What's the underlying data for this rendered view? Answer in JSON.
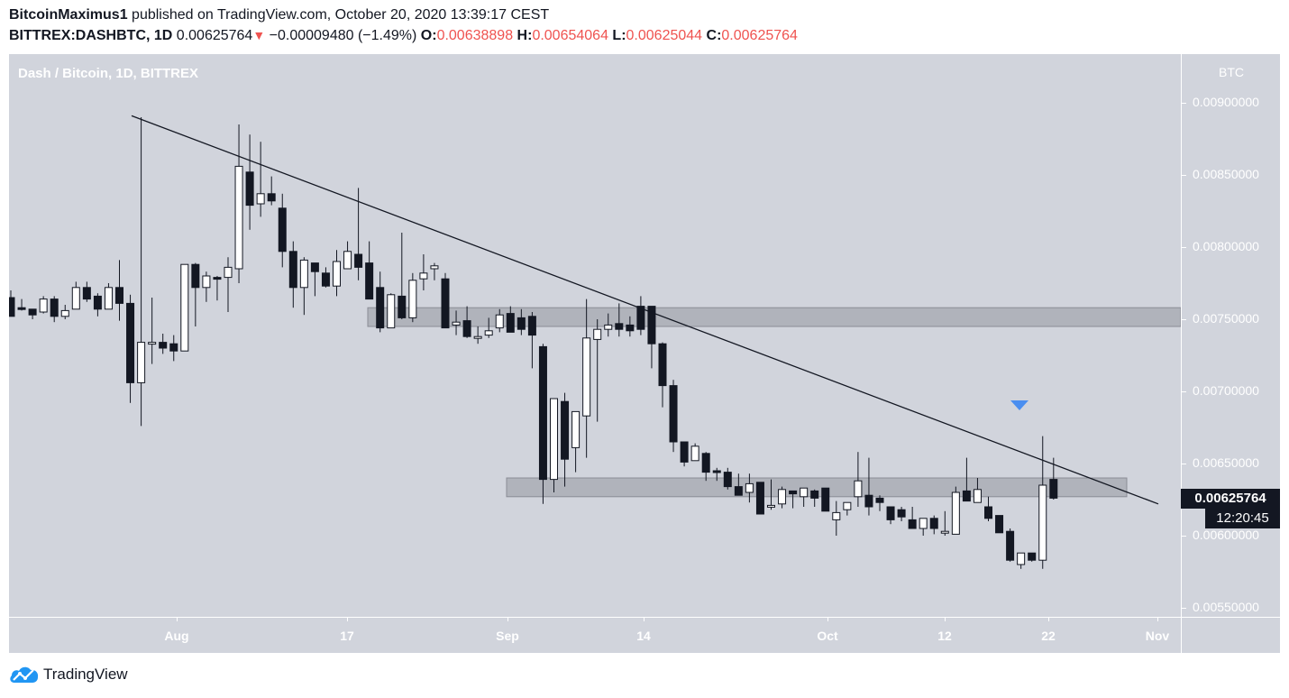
{
  "header": {
    "author": "BitcoinMaximus1",
    "published_text": " published on TradingView.com, October 20, 2020 13:39:17 CEST",
    "symbol": "BITTREX:DASHBTC, 1D",
    "last": "0.00625764",
    "change_arrow": "▼",
    "change": "−0.00009480 (−1.49%)",
    "o_label": "O:",
    "o": "0.00638898",
    "h_label": "H:",
    "h": "0.00654064",
    "l_label": "L:",
    "l": "0.00625044",
    "c_label": "C:",
    "c": "0.00625764"
  },
  "pane": {
    "title": "Dash / Bitcoin, 1D, BITTREX"
  },
  "price_axis": {
    "unit": "BTC",
    "ticks": [
      "0.00900000",
      "0.00850000",
      "0.00800000",
      "0.00750000",
      "0.00700000",
      "0.00650000",
      "0.00600000",
      "0.00550000"
    ],
    "current_price": "0.00625764",
    "countdown": "12:20:45"
  },
  "time_axis": {
    "ticks": [
      {
        "label": "Aug",
        "x": 186
      },
      {
        "label": "17",
        "x": 375
      },
      {
        "label": "Sep",
        "x": 553
      },
      {
        "label": "14",
        "x": 704
      },
      {
        "label": "Oct",
        "x": 908
      },
      {
        "label": "12",
        "x": 1038
      },
      {
        "label": "22",
        "x": 1153
      },
      {
        "label": "Nov",
        "x": 1274
      }
    ]
  },
  "footer": {
    "brand": "TradingView"
  },
  "colors": {
    "background": "#d1d4dc",
    "up_body": "#ffffff",
    "down_body": "#131722",
    "wick": "#131722",
    "zone_fill": "#9598a1",
    "signal_arrow": "#4a8ef0",
    "negative": "#ef5350"
  },
  "chart_data": {
    "type": "candlestick",
    "title": "Dash / Bitcoin, 1D, BITTREX",
    "symbol": "BITTREX:DASHBTC",
    "interval": "1D",
    "ylabel": "BTC",
    "ylim": [
      0.0053,
      0.0093
    ],
    "x_tick_labels": [
      "Aug",
      "17",
      "Sep",
      "14",
      "Oct",
      "12",
      "22",
      "Nov"
    ],
    "y_tick_labels": [
      "0.00900000",
      "0.00850000",
      "0.00800000",
      "0.00750000",
      "0.00700000",
      "0.00650000",
      "0.00600000",
      "0.00550000"
    ],
    "candles": [
      {
        "o": 0.00765,
        "h": 0.0077,
        "l": 0.00752,
        "c": 0.00752
      },
      {
        "o": 0.00758,
        "h": 0.00764,
        "l": 0.00756,
        "c": 0.00757
      },
      {
        "o": 0.00757,
        "h": 0.00757,
        "l": 0.0075,
        "c": 0.00753
      },
      {
        "o": 0.00755,
        "h": 0.00766,
        "l": 0.00754,
        "c": 0.00764
      },
      {
        "o": 0.00764,
        "h": 0.00766,
        "l": 0.00748,
        "c": 0.00752
      },
      {
        "o": 0.00752,
        "h": 0.0076,
        "l": 0.0075,
        "c": 0.00756
      },
      {
        "o": 0.00757,
        "h": 0.00776,
        "l": 0.00757,
        "c": 0.00772
      },
      {
        "o": 0.00772,
        "h": 0.00776,
        "l": 0.00762,
        "c": 0.00764
      },
      {
        "o": 0.00766,
        "h": 0.00768,
        "l": 0.00752,
        "c": 0.00757
      },
      {
        "o": 0.00757,
        "h": 0.00775,
        "l": 0.00757,
        "c": 0.00772
      },
      {
        "o": 0.00772,
        "h": 0.00791,
        "l": 0.00749,
        "c": 0.00761
      },
      {
        "o": 0.00761,
        "h": 0.00767,
        "l": 0.00692,
        "c": 0.00706
      },
      {
        "o": 0.00706,
        "h": 0.0089,
        "l": 0.00676,
        "c": 0.00734
      },
      {
        "o": 0.00734,
        "h": 0.00765,
        "l": 0.00719,
        "c": 0.00734
      },
      {
        "o": 0.00734,
        "h": 0.0074,
        "l": 0.00726,
        "c": 0.0073
      },
      {
        "o": 0.00733,
        "h": 0.00739,
        "l": 0.00721,
        "c": 0.00728
      },
      {
        "o": 0.00728,
        "h": 0.00788,
        "l": 0.00728,
        "c": 0.00788
      },
      {
        "o": 0.00788,
        "h": 0.00789,
        "l": 0.00745,
        "c": 0.00772
      },
      {
        "o": 0.00772,
        "h": 0.00783,
        "l": 0.00762,
        "c": 0.0078
      },
      {
        "o": 0.00779,
        "h": 0.0078,
        "l": 0.00763,
        "c": 0.00778
      },
      {
        "o": 0.00779,
        "h": 0.00793,
        "l": 0.00755,
        "c": 0.00786
      },
      {
        "o": 0.00785,
        "h": 0.00885,
        "l": 0.00775,
        "c": 0.00856
      },
      {
        "o": 0.00852,
        "h": 0.00878,
        "l": 0.00812,
        "c": 0.00829
      },
      {
        "o": 0.0083,
        "h": 0.00873,
        "l": 0.00821,
        "c": 0.00837
      },
      {
        "o": 0.00837,
        "h": 0.00849,
        "l": 0.00829,
        "c": 0.00832
      },
      {
        "o": 0.00827,
        "h": 0.00837,
        "l": 0.00786,
        "c": 0.00797
      },
      {
        "o": 0.00797,
        "h": 0.00804,
        "l": 0.00758,
        "c": 0.00772
      },
      {
        "o": 0.00772,
        "h": 0.00793,
        "l": 0.00753,
        "c": 0.00791
      },
      {
        "o": 0.00789,
        "h": 0.00789,
        "l": 0.00766,
        "c": 0.00783
      },
      {
        "o": 0.00782,
        "h": 0.00786,
        "l": 0.00772,
        "c": 0.00773
      },
      {
        "o": 0.00773,
        "h": 0.00798,
        "l": 0.00766,
        "c": 0.0079
      },
      {
        "o": 0.00785,
        "h": 0.00804,
        "l": 0.00787,
        "c": 0.00797
      },
      {
        "o": 0.00795,
        "h": 0.00841,
        "l": 0.00777,
        "c": 0.00786
      },
      {
        "o": 0.00789,
        "h": 0.00804,
        "l": 0.00773,
        "c": 0.00764
      },
      {
        "o": 0.00772,
        "h": 0.00783,
        "l": 0.00741,
        "c": 0.00744
      },
      {
        "o": 0.00744,
        "h": 0.00768,
        "l": 0.00744,
        "c": 0.00767
      },
      {
        "o": 0.00766,
        "h": 0.0081,
        "l": 0.0075,
        "c": 0.00751
      },
      {
        "o": 0.00751,
        "h": 0.00782,
        "l": 0.00748,
        "c": 0.00777
      },
      {
        "o": 0.00778,
        "h": 0.00795,
        "l": 0.0077,
        "c": 0.00782
      },
      {
        "o": 0.00785,
        "h": 0.00789,
        "l": 0.00777,
        "c": 0.00787
      },
      {
        "o": 0.00778,
        "h": 0.00782,
        "l": 0.00745,
        "c": 0.00744
      },
      {
        "o": 0.00746,
        "h": 0.00756,
        "l": 0.00739,
        "c": 0.00748
      },
      {
        "o": 0.00749,
        "h": 0.00759,
        "l": 0.00737,
        "c": 0.00738
      },
      {
        "o": 0.00738,
        "h": 0.00745,
        "l": 0.00733,
        "c": 0.00738
      },
      {
        "o": 0.00739,
        "h": 0.00751,
        "l": 0.00737,
        "c": 0.00742
      },
      {
        "o": 0.00744,
        "h": 0.00757,
        "l": 0.00741,
        "c": 0.00753
      },
      {
        "o": 0.00754,
        "h": 0.00759,
        "l": 0.00744,
        "c": 0.00741
      },
      {
        "o": 0.00751,
        "h": 0.00757,
        "l": 0.00739,
        "c": 0.00743
      },
      {
        "o": 0.00752,
        "h": 0.00755,
        "l": 0.00716,
        "c": 0.00739
      },
      {
        "o": 0.00731,
        "h": 0.00733,
        "l": 0.00622,
        "c": 0.00639
      },
      {
        "o": 0.00639,
        "h": 0.00695,
        "l": 0.0063,
        "c": 0.00695
      },
      {
        "o": 0.00693,
        "h": 0.00699,
        "l": 0.00634,
        "c": 0.00653
      },
      {
        "o": 0.00661,
        "h": 0.00686,
        "l": 0.00644,
        "c": 0.00686
      },
      {
        "o": 0.00683,
        "h": 0.00764,
        "l": 0.00654,
        "c": 0.00737
      },
      {
        "o": 0.00736,
        "h": 0.0075,
        "l": 0.00679,
        "c": 0.00743
      },
      {
        "o": 0.00743,
        "h": 0.00754,
        "l": 0.00738,
        "c": 0.00746
      },
      {
        "o": 0.00747,
        "h": 0.00761,
        "l": 0.00738,
        "c": 0.00743
      },
      {
        "o": 0.00746,
        "h": 0.00752,
        "l": 0.00738,
        "c": 0.00742
      },
      {
        "o": 0.00759,
        "h": 0.00766,
        "l": 0.00739,
        "c": 0.00743
      },
      {
        "o": 0.00759,
        "h": 0.00758,
        "l": 0.00716,
        "c": 0.00733
      },
      {
        "o": 0.00733,
        "h": 0.00734,
        "l": 0.00689,
        "c": 0.00704
      },
      {
        "o": 0.00704,
        "h": 0.00708,
        "l": 0.00658,
        "c": 0.00665
      },
      {
        "o": 0.00665,
        "h": 0.00658,
        "l": 0.00648,
        "c": 0.00651
      },
      {
        "o": 0.00652,
        "h": 0.00664,
        "l": 0.00655,
        "c": 0.00662
      },
      {
        "o": 0.00657,
        "h": 0.00658,
        "l": 0.00638,
        "c": 0.00644
      },
      {
        "o": 0.00645,
        "h": 0.00647,
        "l": 0.00638,
        "c": 0.00644
      },
      {
        "o": 0.00644,
        "h": 0.00647,
        "l": 0.00632,
        "c": 0.00634
      },
      {
        "o": 0.00634,
        "h": 0.00643,
        "l": 0.00629,
        "c": 0.00628
      },
      {
        "o": 0.0063,
        "h": 0.00643,
        "l": 0.00623,
        "c": 0.00636
      },
      {
        "o": 0.00637,
        "h": 0.00637,
        "l": 0.0062,
        "c": 0.00615
      },
      {
        "o": 0.00621,
        "h": 0.00639,
        "l": 0.00618,
        "c": 0.00621
      },
      {
        "o": 0.00622,
        "h": 0.00634,
        "l": 0.00619,
        "c": 0.00632
      },
      {
        "o": 0.00631,
        "h": 0.00631,
        "l": 0.00619,
        "c": 0.00629
      },
      {
        "o": 0.00627,
        "h": 0.00632,
        "l": 0.0062,
        "c": 0.00633
      },
      {
        "o": 0.00631,
        "h": 0.00632,
        "l": 0.0062,
        "c": 0.00626
      },
      {
        "o": 0.00633,
        "h": 0.00632,
        "l": 0.00617,
        "c": 0.00617
      },
      {
        "o": 0.00611,
        "h": 0.00624,
        "l": 0.006,
        "c": 0.00616
      },
      {
        "o": 0.00618,
        "h": 0.00621,
        "l": 0.00614,
        "c": 0.00623
      },
      {
        "o": 0.00627,
        "h": 0.00658,
        "l": 0.0062,
        "c": 0.00638
      },
      {
        "o": 0.00628,
        "h": 0.00654,
        "l": 0.00614,
        "c": 0.0062
      },
      {
        "o": 0.00626,
        "h": 0.00628,
        "l": 0.00617,
        "c": 0.00623
      },
      {
        "o": 0.0062,
        "h": 0.0062,
        "l": 0.00608,
        "c": 0.00611
      },
      {
        "o": 0.00618,
        "h": 0.0062,
        "l": 0.0061,
        "c": 0.00613
      },
      {
        "o": 0.00611,
        "h": 0.0062,
        "l": 0.00605,
        "c": 0.00605
      },
      {
        "o": 0.00605,
        "h": 0.00608,
        "l": 0.006,
        "c": 0.00612
      },
      {
        "o": 0.00612,
        "h": 0.00614,
        "l": 0.00601,
        "c": 0.00605
      },
      {
        "o": 0.00603,
        "h": 0.00617,
        "l": 0.006,
        "c": 0.00603
      },
      {
        "o": 0.00601,
        "h": 0.00634,
        "l": 0.00601,
        "c": 0.0063
      },
      {
        "o": 0.00631,
        "h": 0.00654,
        "l": 0.00626,
        "c": 0.00624
      },
      {
        "o": 0.00623,
        "h": 0.0064,
        "l": 0.00624,
        "c": 0.00632
      },
      {
        "o": 0.0062,
        "h": 0.00627,
        "l": 0.0061,
        "c": 0.00612
      },
      {
        "o": 0.00614,
        "h": 0.00612,
        "l": 0.00603,
        "c": 0.00602
      },
      {
        "o": 0.00603,
        "h": 0.00605,
        "l": 0.00582,
        "c": 0.00583
      },
      {
        "o": 0.0058,
        "h": 0.00581,
        "l": 0.00577,
        "c": 0.00588
      },
      {
        "o": 0.00588,
        "h": 0.00588,
        "l": 0.00582,
        "c": 0.00583
      },
      {
        "o": 0.00583,
        "h": 0.00669,
        "l": 0.00577,
        "c": 0.00635
      },
      {
        "o": 0.00639,
        "h": 0.00654,
        "l": 0.00625,
        "c": 0.00626
      }
    ],
    "annotations": [
      {
        "type": "trendline",
        "from": {
          "x": 136,
          "price": 0.00891
        },
        "to": {
          "x": 1275,
          "price": 0.00622
        }
      },
      {
        "type": "zone",
        "label": "resistance",
        "x0": 398,
        "x1": 1300,
        "price_top": 0.00758,
        "price_bottom": 0.00745
      },
      {
        "type": "zone",
        "label": "support",
        "x0": 552,
        "x1": 1240,
        "price_top": 0.0064,
        "price_bottom": 0.00627
      },
      {
        "type": "signal-arrow-down",
        "x": 1121,
        "price": 0.0069
      }
    ],
    "current_price": 0.00625764
  }
}
